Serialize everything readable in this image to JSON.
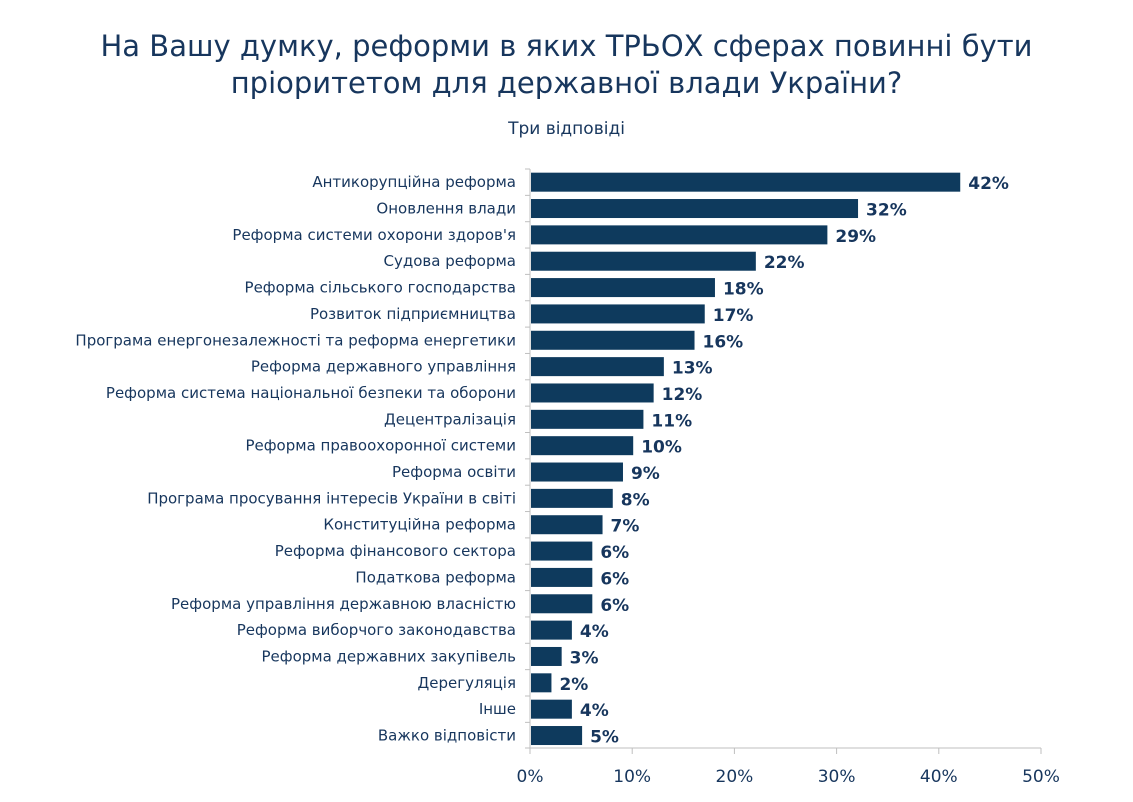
{
  "chart_data": {
    "type": "bar",
    "orientation": "horizontal",
    "title": "На Вашу думку, реформи в яких ТРЬОХ сферах повинні бути пріоритетом для державної влади України?",
    "subtitle": "Три відповіді",
    "categories": [
      "Антикорупційна реформа",
      "Оновлення влади",
      "Реформа системи охорони здоров'я",
      "Судова реформа",
      "Реформа сільського господарства",
      "Розвиток підприємництва",
      "Програма енергонезалежності та реформа енергетики",
      "Реформа державного управління",
      "Реформа система національної безпеки та оборони",
      "Децентралізація",
      "Реформа правоохоронної системи",
      "Реформа освіти",
      "Програма просування інтересів України в світі",
      "Конституційна реформа",
      "Реформа фінансового сектора",
      "Податкова реформа",
      "Реформа управління державною власністю",
      "Реформа виборчого законодавства",
      "Реформа державних закупівель",
      "Дерегуляція",
      "Інше",
      "Важко відповісти"
    ],
    "values": [
      42,
      32,
      29,
      22,
      18,
      17,
      16,
      13,
      12,
      11,
      10,
      9,
      8,
      7,
      6,
      6,
      6,
      4,
      3,
      2,
      4,
      5
    ],
    "data_labels": [
      "42%",
      "32%",
      "29%",
      "22%",
      "18%",
      "17%",
      "16%",
      "13%",
      "12%",
      "11%",
      "10%",
      "9%",
      "8%",
      "7%",
      "6%",
      "6%",
      "6%",
      "4%",
      "3%",
      "2%",
      "4%",
      "5%"
    ],
    "xlim": [
      0,
      50
    ],
    "xticks": [
      "0%",
      "10%",
      "20%",
      "30%",
      "40%",
      "50%"
    ],
    "grid": false,
    "bar_color": "#0e3a5d",
    "text_color": "#17365d"
  }
}
